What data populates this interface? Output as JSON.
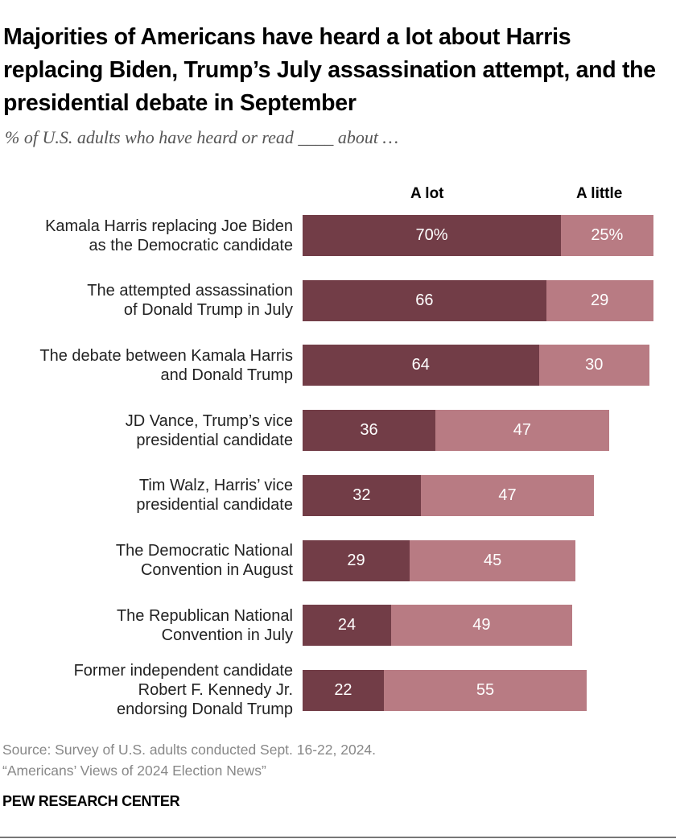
{
  "chart_data": {
    "type": "bar",
    "orientation": "horizontal",
    "stacked": true,
    "title": "Majorities of Americans have heard a lot about Harris replacing Biden, Trump’s July assassination attempt, and the presidential debate in September",
    "subtitle": "% of U.S. adults who have heard or read ____ about …",
    "categories": [
      "Kamala Harris replacing Joe Biden\nas the Democratic candidate",
      "The attempted assassination\nof Donald Trump in July",
      "The debate between Kamala Harris\nand Donald Trump",
      "JD Vance, Trump’s vice\npresidential candidate",
      "Tim Walz, Harris’ vice\npresidential candidate",
      "The Democratic National\nConvention in August",
      "The Republican National\nConvention in July",
      "Former independent candidate\nRobert F. Kennedy Jr.\nendorsing Donald Trump"
    ],
    "series": [
      {
        "name": "A lot",
        "color": "#723d47",
        "values": [
          70,
          66,
          64,
          36,
          32,
          29,
          24,
          22
        ]
      },
      {
        "name": "A little",
        "color": "#b87b83",
        "values": [
          25,
          29,
          30,
          47,
          47,
          45,
          49,
          55
        ]
      }
    ],
    "first_row_suffix": "%",
    "xlim": [
      0,
      100
    ],
    "grid": false,
    "legend": "column headers above bars"
  },
  "source": "Source: Survey of U.S. adults conducted Sept. 16-22, 2024.",
  "report": "“Americans’ Views of 2024 Election News”",
  "brand": "PEW RESEARCH CENTER"
}
